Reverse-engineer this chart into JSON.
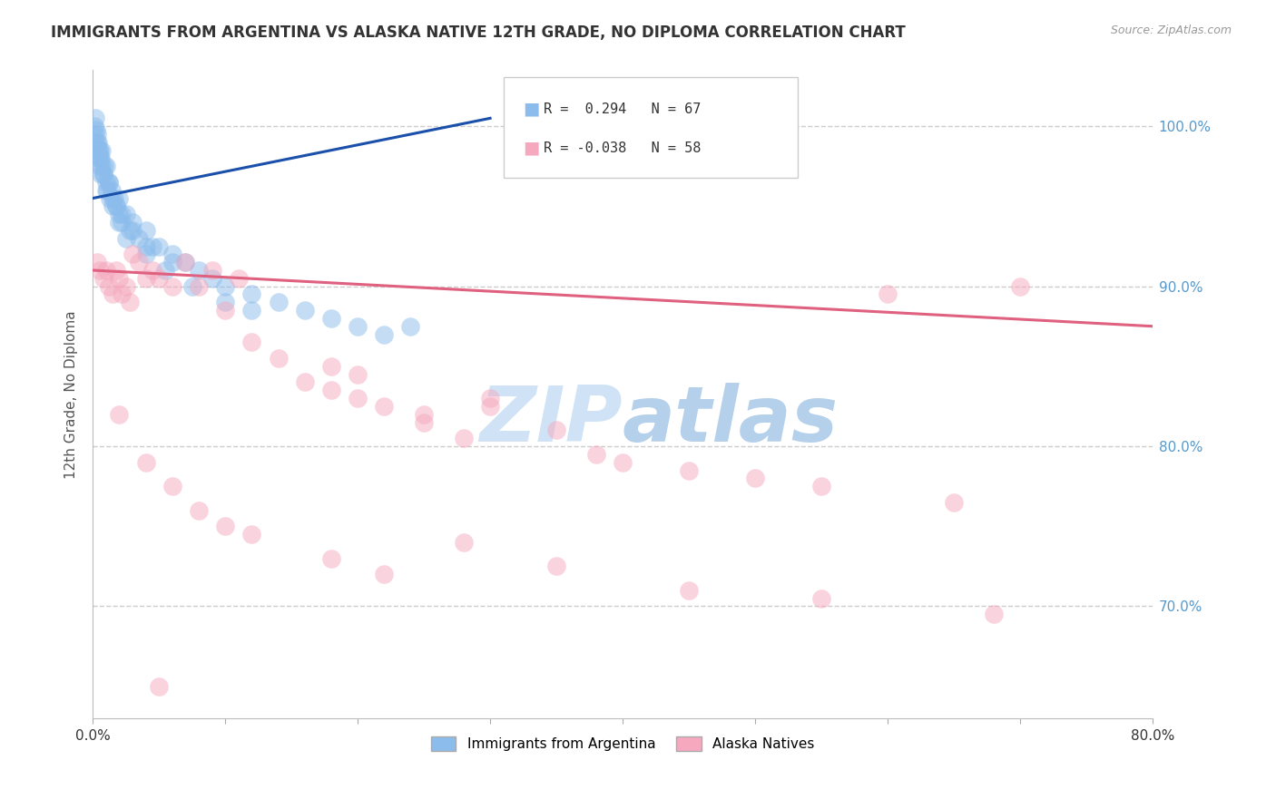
{
  "title": "IMMIGRANTS FROM ARGENTINA VS ALASKA NATIVE 12TH GRADE, NO DIPLOMA CORRELATION CHART",
  "source": "Source: ZipAtlas.com",
  "ylabel": "12th Grade, No Diploma",
  "x_tick_labels": [
    "0.0%",
    "",
    "",
    "",
    "",
    "",
    "",
    "",
    "80.0%"
  ],
  "x_tick_values": [
    0.0,
    10.0,
    20.0,
    30.0,
    40.0,
    50.0,
    60.0,
    70.0,
    80.0
  ],
  "y_tick_labels_right": [
    "100.0%",
    "90.0%",
    "80.0%",
    "70.0%"
  ],
  "y_tick_values": [
    100.0,
    90.0,
    80.0,
    70.0
  ],
  "xlim": [
    0.0,
    80.0
  ],
  "ylim": [
    63.0,
    103.5
  ],
  "blue_R": 0.294,
  "blue_N": 67,
  "pink_R": -0.038,
  "pink_N": 58,
  "blue_color": "#8bbcec",
  "pink_color": "#f5a8be",
  "blue_line_color": "#1a4faa",
  "pink_line_color": "#e06080",
  "legend_label_blue": "Immigrants from Argentina",
  "legend_label_pink": "Alaska Natives",
  "grid_color": "#cccccc",
  "background_color": "#ffffff",
  "blue_dots_x": [
    0.1,
    0.15,
    0.2,
    0.2,
    0.25,
    0.3,
    0.3,
    0.35,
    0.4,
    0.4,
    0.45,
    0.5,
    0.5,
    0.55,
    0.6,
    0.6,
    0.7,
    0.7,
    0.8,
    0.9,
    1.0,
    1.0,
    1.1,
    1.2,
    1.3,
    1.4,
    1.5,
    1.6,
    1.8,
    2.0,
    2.0,
    2.2,
    2.5,
    2.8,
    3.0,
    3.5,
    4.0,
    4.5,
    5.0,
    6.0,
    7.0,
    8.0,
    9.0,
    10.0,
    12.0,
    14.0,
    16.0,
    18.0,
    20.0,
    22.0,
    24.0,
    4.0,
    5.5,
    7.5,
    10.0,
    12.0,
    2.0,
    3.0,
    1.5,
    1.8,
    2.5,
    4.0,
    6.0,
    2.2,
    1.2,
    0.8,
    1.0
  ],
  "blue_dots_y": [
    99.5,
    100.0,
    99.0,
    100.5,
    99.8,
    98.5,
    99.5,
    99.0,
    98.0,
    99.0,
    98.5,
    97.5,
    98.0,
    98.5,
    97.0,
    98.0,
    97.5,
    98.5,
    97.0,
    97.5,
    96.5,
    97.5,
    96.0,
    96.5,
    95.5,
    96.0,
    95.0,
    95.5,
    95.0,
    94.5,
    95.5,
    94.0,
    94.5,
    93.5,
    94.0,
    93.0,
    93.5,
    92.5,
    92.5,
    92.0,
    91.5,
    91.0,
    90.5,
    90.0,
    89.5,
    89.0,
    88.5,
    88.0,
    87.5,
    87.0,
    87.5,
    92.0,
    91.0,
    90.0,
    89.0,
    88.5,
    94.0,
    93.5,
    95.5,
    95.0,
    93.0,
    92.5,
    91.5,
    94.5,
    96.5,
    97.0,
    96.0
  ],
  "pink_dots_x": [
    0.3,
    0.5,
    0.8,
    1.0,
    1.2,
    1.5,
    1.8,
    2.0,
    2.2,
    2.5,
    2.8,
    3.0,
    3.5,
    4.0,
    4.5,
    5.0,
    6.0,
    7.0,
    8.0,
    9.0,
    10.0,
    11.0,
    12.0,
    14.0,
    16.0,
    18.0,
    20.0,
    22.0,
    25.0,
    28.0,
    18.0,
    20.0,
    25.0,
    30.0,
    30.0,
    35.0,
    38.0,
    40.0,
    45.0,
    50.0,
    55.0,
    60.0,
    65.0,
    70.0,
    2.0,
    4.0,
    6.0,
    8.0,
    12.0,
    18.0,
    22.0,
    28.0,
    35.0,
    45.0,
    55.0,
    68.0,
    5.0,
    10.0
  ],
  "pink_dots_y": [
    91.5,
    91.0,
    90.5,
    91.0,
    90.0,
    89.5,
    91.0,
    90.5,
    89.5,
    90.0,
    89.0,
    92.0,
    91.5,
    90.5,
    91.0,
    90.5,
    90.0,
    91.5,
    90.0,
    91.0,
    88.5,
    90.5,
    86.5,
    85.5,
    84.0,
    83.5,
    83.0,
    82.5,
    81.5,
    80.5,
    85.0,
    84.5,
    82.0,
    82.5,
    83.0,
    81.0,
    79.5,
    79.0,
    78.5,
    78.0,
    77.5,
    89.5,
    76.5,
    90.0,
    82.0,
    79.0,
    77.5,
    76.0,
    74.5,
    73.0,
    72.0,
    74.0,
    72.5,
    71.0,
    70.5,
    69.5,
    65.0,
    75.0
  ],
  "blue_line_x0": 0.0,
  "blue_line_y0": 95.5,
  "blue_line_x1": 30.0,
  "blue_line_y1": 100.5,
  "pink_line_x0": 0.0,
  "pink_line_y0": 91.0,
  "pink_line_x1": 80.0,
  "pink_line_y1": 87.5
}
